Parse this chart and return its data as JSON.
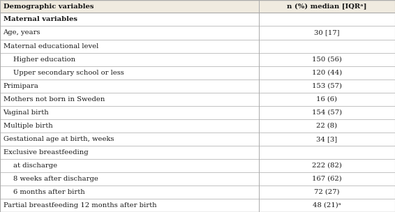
{
  "col1_header": "Demographic variables",
  "col2_header": "n (%) median [IQRᵃ]",
  "rows": [
    {
      "label": "Maternal variables",
      "value": "",
      "bold": true,
      "indent": 0
    },
    {
      "label": "Age, years",
      "value": "30 [17]",
      "bold": false,
      "indent": 0
    },
    {
      "label": "Maternal educational level",
      "value": "",
      "bold": false,
      "indent": 0
    },
    {
      "label": "Higher education",
      "value": "150 (56)",
      "bold": false,
      "indent": 1
    },
    {
      "label": "Upper secondary school or less",
      "value": "120 (44)",
      "bold": false,
      "indent": 1
    },
    {
      "label": "Primipara",
      "value": "153 (57)",
      "bold": false,
      "indent": 0
    },
    {
      "label": "Mothers not born in Sweden",
      "value": "16 (6)",
      "bold": false,
      "indent": 0
    },
    {
      "label": "Vaginal birth",
      "value": "154 (57)",
      "bold": false,
      "indent": 0
    },
    {
      "label": "Multiple birth",
      "value": "22 (8)",
      "bold": false,
      "indent": 0
    },
    {
      "label": "Gestational age at birth, weeks",
      "value": "34 [3]",
      "bold": false,
      "indent": 0
    },
    {
      "label": "Exclusive breastfeeding",
      "value": "",
      "bold": false,
      "indent": 0
    },
    {
      "label": "at discharge",
      "value": "222 (82)",
      "bold": false,
      "indent": 1
    },
    {
      "label": "8 weeks after discharge",
      "value": "167 (62)",
      "bold": false,
      "indent": 1
    },
    {
      "label": "6 months after birth",
      "value": "72 (27)",
      "bold": false,
      "indent": 1
    },
    {
      "label": "Partial breastfeeding 12 months after birth",
      "value": "48 (21)ᵃ",
      "bold": false,
      "indent": 0
    }
  ],
  "bg_color": "#ffffff",
  "header_bg": "#f0ebe0",
  "line_color": "#aaaaaa",
  "text_color": "#1a1a1a",
  "font_size": 7.2,
  "col_split": 0.655
}
